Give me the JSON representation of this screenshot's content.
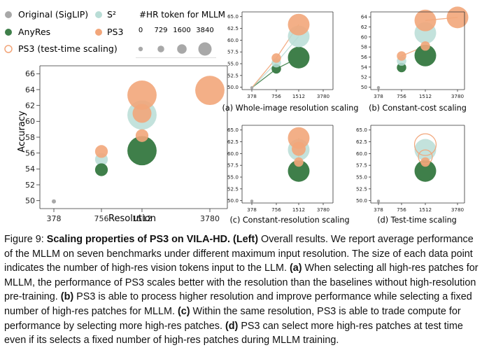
{
  "legend": {
    "items": [
      {
        "label": "Original (SigLIP)",
        "color": "#a8a8a8",
        "style": "filled"
      },
      {
        "label": "S²",
        "color": "#b9ddd6",
        "style": "filled"
      },
      {
        "label": "AnyRes",
        "color": "#3f7f4a",
        "style": "filled"
      },
      {
        "label": "PS3",
        "color": "#f2a67a",
        "style": "filled"
      },
      {
        "label": "PS3 (test-time scaling)",
        "color": "#f2a67a",
        "style": "hollow"
      }
    ],
    "size_title": "#HR token for MLLM",
    "size_ticks": [
      "0",
      "729",
      "1600",
      "3840"
    ]
  },
  "chart_data": [
    {
      "id": "main",
      "type": "scatter",
      "title": "",
      "xlabel": "Resolution",
      "ylabel": "Accuracy",
      "x_categories": [
        378,
        756,
        1512,
        3780
      ],
      "ylim": [
        49,
        67
      ],
      "yticks": [
        50,
        52,
        54,
        56,
        58,
        60,
        62,
        64,
        66
      ],
      "points": [
        {
          "series": "Original (SigLIP)",
          "x": 378,
          "y": 49.9,
          "tokens": 0
        },
        {
          "series": "S²",
          "x": 756,
          "y": 55.2,
          "tokens": 729
        },
        {
          "series": "S²",
          "x": 1512,
          "y": 60.8,
          "tokens": 3840
        },
        {
          "series": "AnyRes",
          "x": 756,
          "y": 53.9,
          "tokens": 729
        },
        {
          "series": "AnyRes",
          "x": 1512,
          "y": 56.3,
          "tokens": 3840
        },
        {
          "series": "PS3",
          "x": 756,
          "y": 56.2,
          "tokens": 729
        },
        {
          "series": "PS3",
          "x": 1512,
          "y": 58.2,
          "tokens": 729
        },
        {
          "series": "PS3",
          "x": 1512,
          "y": 63.3,
          "tokens": 3840
        },
        {
          "series": "PS3",
          "x": 1512,
          "y": 61.0,
          "tokens": 1600
        },
        {
          "series": "PS3",
          "x": 3780,
          "y": 63.9,
          "tokens": 3840
        }
      ],
      "lines": []
    },
    {
      "id": "a",
      "type": "scatter",
      "title": "(a) Whole-image resolution scaling",
      "xlabel": "",
      "ylabel": "",
      "x_categories": [
        378,
        756,
        1512,
        3780
      ],
      "ylim": [
        49.5,
        66
      ],
      "yticks": [
        50.0,
        52.5,
        55.0,
        57.5,
        60.0,
        62.5,
        65.0
      ],
      "points": [
        {
          "series": "Original (SigLIP)",
          "x": 378,
          "y": 49.9,
          "tokens": 0
        },
        {
          "series": "AnyRes",
          "x": 756,
          "y": 53.9,
          "tokens": 729
        },
        {
          "series": "S²",
          "x": 756,
          "y": 55.2,
          "tokens": 729
        },
        {
          "series": "PS3",
          "x": 756,
          "y": 56.2,
          "tokens": 729
        },
        {
          "series": "AnyRes",
          "x": 1512,
          "y": 56.3,
          "tokens": 3840
        },
        {
          "series": "S²",
          "x": 1512,
          "y": 60.8,
          "tokens": 3840
        },
        {
          "series": "PS3",
          "x": 1512,
          "y": 63.3,
          "tokens": 3840
        }
      ],
      "lines": [
        {
          "series": "AnyRes",
          "points": [
            [
              378,
              49.9
            ],
            [
              756,
              53.9
            ],
            [
              1512,
              56.3
            ]
          ]
        },
        {
          "series": "S²",
          "points": [
            [
              378,
              49.9
            ],
            [
              756,
              55.2
            ],
            [
              1512,
              60.8
            ]
          ]
        },
        {
          "series": "PS3",
          "points": [
            [
              378,
              49.9
            ],
            [
              756,
              56.2
            ],
            [
              1512,
              63.3
            ]
          ]
        }
      ]
    },
    {
      "id": "b",
      "type": "scatter",
      "title": "(b) Constant-cost scaling",
      "xlabel": "",
      "ylabel": "",
      "x_categories": [
        378,
        756,
        1512,
        3780
      ],
      "ylim": [
        49.5,
        65
      ],
      "yticks": [
        50,
        52,
        54,
        56,
        58,
        60,
        62,
        64
      ],
      "points": [
        {
          "series": "Original (SigLIP)",
          "x": 378,
          "y": 49.9,
          "tokens": 0
        },
        {
          "series": "AnyRes",
          "x": 756,
          "y": 53.9,
          "tokens": 729
        },
        {
          "series": "S²",
          "x": 756,
          "y": 55.2,
          "tokens": 729
        },
        {
          "series": "PS3",
          "x": 756,
          "y": 56.2,
          "tokens": 729
        },
        {
          "series": "AnyRes",
          "x": 1512,
          "y": 56.3,
          "tokens": 3840
        },
        {
          "series": "S²",
          "x": 1512,
          "y": 60.8,
          "tokens": 3840
        },
        {
          "series": "PS3",
          "x": 1512,
          "y": 58.2,
          "tokens": 729
        },
        {
          "series": "PS3",
          "x": 1512,
          "y": 63.3,
          "tokens": 3840
        },
        {
          "series": "PS3",
          "x": 3780,
          "y": 63.9,
          "tokens": 3840
        }
      ],
      "lines": [
        {
          "series": "PS3",
          "points": [
            [
              756,
              56.2
            ],
            [
              1512,
              58.2
            ]
          ]
        },
        {
          "series": "PS3",
          "points": [
            [
              1512,
              63.3
            ],
            [
              3780,
              63.9
            ]
          ]
        }
      ]
    },
    {
      "id": "c",
      "type": "scatter",
      "title": "(c) Constant-resolution scaling",
      "xlabel": "",
      "ylabel": "",
      "x_categories": [
        378,
        756,
        1512,
        3780
      ],
      "ylim": [
        49.5,
        66
      ],
      "yticks": [
        50.0,
        52.5,
        55.0,
        57.5,
        60.0,
        62.5,
        65.0
      ],
      "points": [
        {
          "series": "Original (SigLIP)",
          "x": 378,
          "y": 49.9,
          "tokens": 0
        },
        {
          "series": "AnyRes",
          "x": 1512,
          "y": 56.3,
          "tokens": 3840
        },
        {
          "series": "S²",
          "x": 1512,
          "y": 60.8,
          "tokens": 3840
        },
        {
          "series": "PS3",
          "x": 1512,
          "y": 58.2,
          "tokens": 729
        },
        {
          "series": "PS3",
          "x": 1512,
          "y": 61.0,
          "tokens": 1600
        },
        {
          "series": "PS3",
          "x": 1512,
          "y": 63.3,
          "tokens": 3840
        }
      ],
      "lines": [
        {
          "series": "PS3",
          "points": [
            [
              1512,
              58.2
            ],
            [
              1512,
              61.0
            ],
            [
              1512,
              63.3
            ]
          ]
        }
      ]
    },
    {
      "id": "d",
      "type": "scatter",
      "title": "(d) Test-time scaling",
      "xlabel": "",
      "ylabel": "",
      "x_categories": [
        378,
        756,
        1512,
        3780
      ],
      "ylim": [
        49.5,
        66
      ],
      "yticks": [
        50.0,
        52.5,
        55.0,
        57.5,
        60.0,
        62.5,
        65.0
      ],
      "points": [
        {
          "series": "Original (SigLIP)",
          "x": 378,
          "y": 49.9,
          "tokens": 0
        },
        {
          "series": "AnyRes",
          "x": 1512,
          "y": 56.3,
          "tokens": 3840
        },
        {
          "series": "S²",
          "x": 1512,
          "y": 60.8,
          "tokens": 3840
        },
        {
          "series": "PS3",
          "x": 1512,
          "y": 58.2,
          "tokens": 729
        },
        {
          "series": "PS3 (test-time scaling)",
          "x": 1512,
          "y": 59.3,
          "tokens": 1600
        },
        {
          "series": "PS3 (test-time scaling)",
          "x": 1512,
          "y": 61.9,
          "tokens": 3840
        }
      ],
      "lines": []
    }
  ],
  "caption": {
    "label": "Figure 9:",
    "title": "Scaling properties of PS3 on VILA-HD. (Left)",
    "intro": " Overall results. We report average performance of the MLLM on seven benchmarks under different maximum input resolution. The size of each data point indicates the number of high-res vision tokens input to the LLM. ",
    "a_tag": "(a)",
    "a_text": " When selecting all high-res patches for MLLM, the performance of PS3 scales better with the resolution than the baselines without high-resolution pre-training. ",
    "b_tag": "(b)",
    "b_text": " PS3 is able to process higher resolution and improve performance while selecting a fixed number of high-res patches for MLLM. ",
    "c_tag": "(c)",
    "c_text": " Within the same resolution, PS3 is able to trade compute for performance by selecting more high-res patches. ",
    "d_tag": "(d)",
    "d_text": " PS3 can select more high-res patches at test time even if its selects a fixed number of high-res patches during MLLM training."
  }
}
